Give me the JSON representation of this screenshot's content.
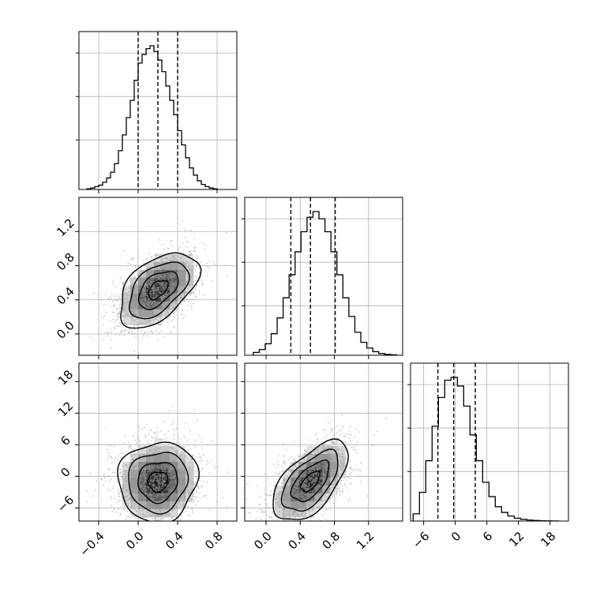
{
  "chart_data": {
    "type": "corner",
    "parameters": 3,
    "colors": {
      "hist": "#000000",
      "grid": "#b0b0b0",
      "points": "#999999",
      "contour": "#000000"
    },
    "grid": true,
    "quantile_line_style": "dashed",
    "axes": [
      {
        "index": 0,
        "range": [
          -0.6,
          1.0
        ],
        "ticks": [
          -0.4,
          0.0,
          0.4,
          0.8
        ],
        "tick_labels": [
          "−0.4",
          "0.0",
          "0.4",
          "0.8"
        ],
        "quantiles": [
          0.0,
          0.2,
          0.4
        ]
      },
      {
        "index": 1,
        "range": [
          -0.25,
          1.6
        ],
        "ticks": [
          0.0,
          0.4,
          0.8,
          1.2
        ],
        "tick_labels": [
          "0.0",
          "0.4",
          "0.8",
          "1.2"
        ],
        "quantiles": [
          0.29,
          0.52,
          0.81
        ]
      },
      {
        "index": 2,
        "range": [
          -8.5,
          21.5
        ],
        "ticks": [
          -6,
          0,
          6,
          12,
          18
        ],
        "tick_labels": [
          "−6",
          "0",
          "6",
          "12",
          "18"
        ],
        "quantiles": [
          -3.3,
          -0.3,
          3.8
        ]
      }
    ],
    "histograms": [
      {
        "param": 0,
        "bins": [
          -0.52,
          -0.48,
          -0.44,
          -0.4,
          -0.36,
          -0.32,
          -0.28,
          -0.24,
          -0.2,
          -0.16,
          -0.12,
          -0.08,
          -0.04,
          0.0,
          0.04,
          0.08,
          0.12,
          0.16,
          0.2,
          0.24,
          0.28,
          0.32,
          0.36,
          0.4,
          0.44,
          0.48,
          0.52,
          0.56,
          0.6,
          0.64,
          0.68,
          0.72,
          0.76,
          0.8
        ],
        "counts": [
          0.005,
          0.01,
          0.02,
          0.03,
          0.05,
          0.08,
          0.12,
          0.18,
          0.27,
          0.38,
          0.5,
          0.62,
          0.76,
          0.88,
          0.94,
          0.98,
          1.0,
          0.96,
          0.9,
          0.82,
          0.72,
          0.62,
          0.52,
          0.41,
          0.31,
          0.22,
          0.15,
          0.1,
          0.06,
          0.035,
          0.02,
          0.01,
          0.005
        ]
      },
      {
        "param": 1,
        "bins": [
          -0.15,
          -0.08,
          -0.01,
          0.06,
          0.13,
          0.2,
          0.27,
          0.34,
          0.41,
          0.48,
          0.55,
          0.62,
          0.69,
          0.76,
          0.83,
          0.9,
          0.97,
          1.04,
          1.11,
          1.18,
          1.25,
          1.32,
          1.39,
          1.46,
          1.53
        ],
        "counts": [
          0.02,
          0.04,
          0.08,
          0.15,
          0.26,
          0.4,
          0.56,
          0.72,
          0.86,
          0.96,
          1.0,
          0.95,
          0.86,
          0.72,
          0.56,
          0.4,
          0.27,
          0.16,
          0.09,
          0.05,
          0.025,
          0.012,
          0.006,
          0.003
        ]
      },
      {
        "param": 2,
        "bins": [
          -8.0,
          -6.8,
          -5.6,
          -4.4,
          -3.2,
          -2.0,
          -0.8,
          0.4,
          1.6,
          2.8,
          4.0,
          5.2,
          6.4,
          7.6,
          8.8,
          10.0,
          11.2,
          12.4,
          13.6,
          14.8,
          16.0,
          17.2,
          18.4,
          19.6
        ],
        "counts": [
          0.05,
          0.2,
          0.42,
          0.66,
          0.86,
          0.98,
          1.0,
          0.94,
          0.8,
          0.6,
          0.42,
          0.27,
          0.17,
          0.1,
          0.06,
          0.035,
          0.02,
          0.012,
          0.007,
          0.004,
          0.002,
          0.001,
          0.0005
        ]
      }
    ],
    "panels_2d": [
      {
        "x_param": 0,
        "y_param": 1,
        "mean": [
          0.2,
          0.52
        ],
        "std": [
          0.2,
          0.22
        ],
        "corr": 0.5,
        "contour_levels": [
          0.5,
          1.0,
          1.5,
          2.0
        ],
        "points_shown": 1600
      },
      {
        "x_param": 0,
        "y_param": 2,
        "mean": [
          0.2,
          -1.0
        ],
        "std": [
          0.2,
          3.8
        ],
        "corr": 0.05,
        "contour_levels": [
          0.5,
          1.0,
          1.5,
          2.0
        ],
        "points_shown": 1600
      },
      {
        "x_param": 1,
        "y_param": 2,
        "mean": [
          0.52,
          -1.0
        ],
        "std": [
          0.22,
          3.8
        ],
        "corr": 0.6,
        "contour_levels": [
          0.5,
          1.0,
          1.5,
          2.0
        ],
        "points_shown": 1600
      }
    ]
  }
}
